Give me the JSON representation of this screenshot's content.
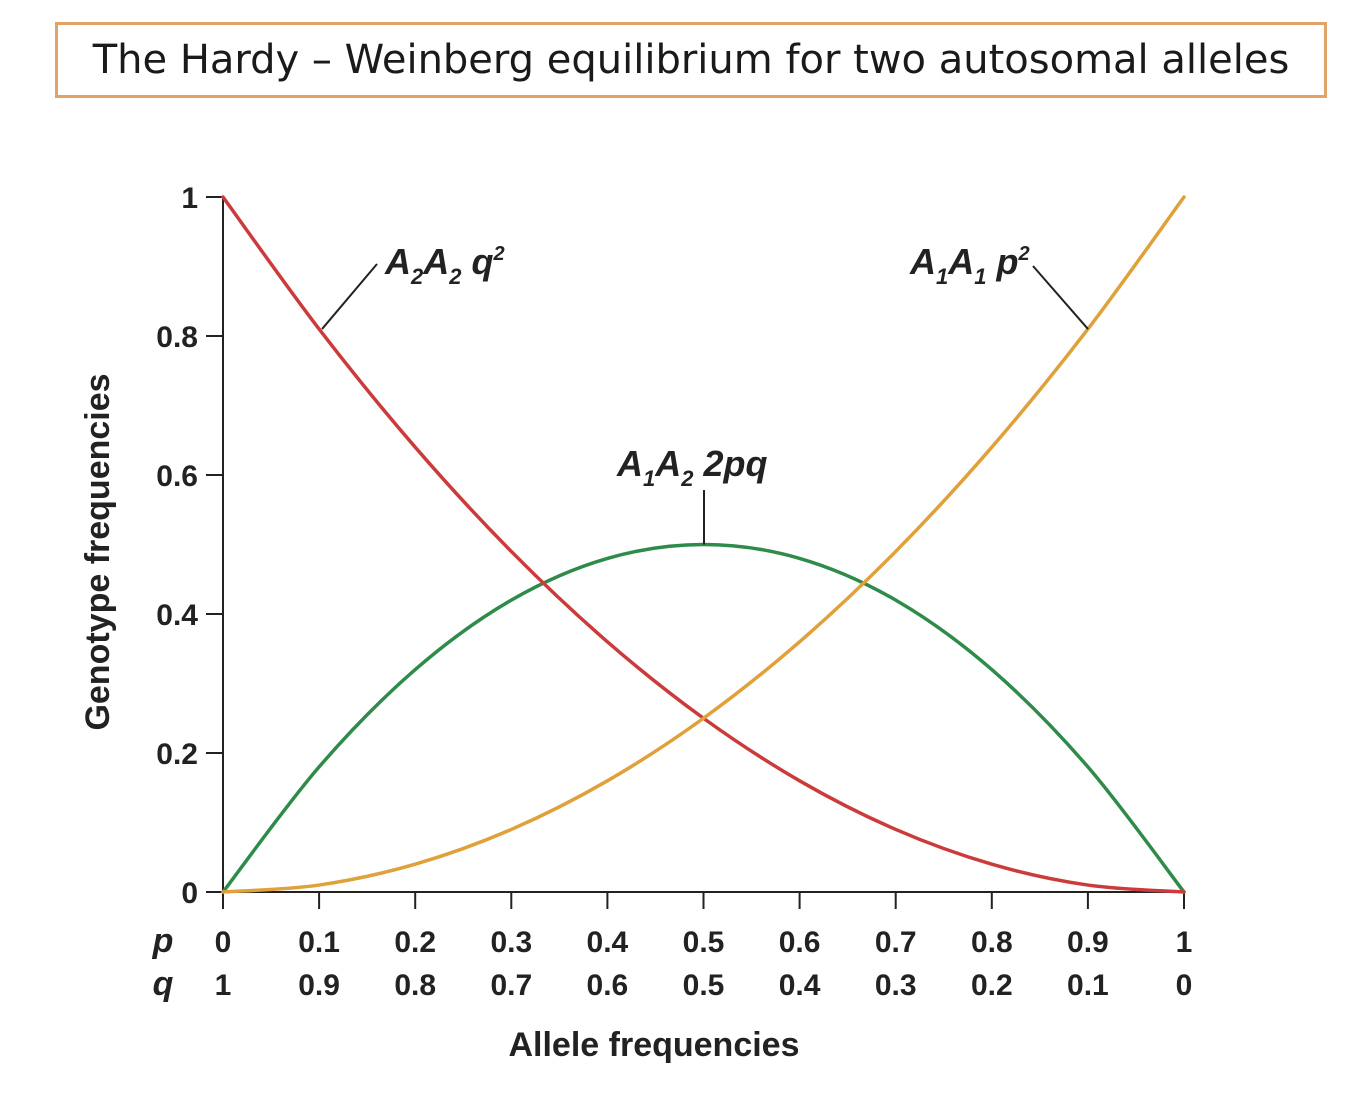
{
  "title": "The Hardy – Weinberg equilibrium for two autosomal alleles",
  "colors": {
    "title_border": "#e0a468",
    "A2A2": "#cc3b3b",
    "A1A2": "#2e8b4a",
    "A1A1": "#e0a03a",
    "axis": "#222222"
  },
  "chart_data": {
    "type": "line",
    "xlabel": "Allele frequencies",
    "ylabel": "Genotype frequencies",
    "ylim": [
      0,
      1
    ],
    "xlim": [
      0,
      1
    ],
    "y_ticks": [
      "0",
      "0.2",
      "0.4",
      "0.6",
      "0.8",
      "1"
    ],
    "x_rows": [
      {
        "label": "p",
        "ticks": [
          "0",
          "0.1",
          "0.2",
          "0.3",
          "0.4",
          "0.5",
          "0.6",
          "0.7",
          "0.8",
          "0.9",
          "1"
        ]
      },
      {
        "label": "q",
        "ticks": [
          "1",
          "0.9",
          "0.8",
          "0.7",
          "0.6",
          "0.5",
          "0.4",
          "0.3",
          "0.2",
          "0.1",
          "0"
        ]
      }
    ],
    "x": [
      0,
      0.1,
      0.2,
      0.3,
      0.4,
      0.5,
      0.6,
      0.7,
      0.8,
      0.9,
      1
    ],
    "series": [
      {
        "name": "A2A2 q2",
        "color": "#cc3b3b",
        "values": [
          1,
          0.81,
          0.64,
          0.49,
          0.36,
          0.25,
          0.16,
          0.09,
          0.04,
          0.01,
          0
        ]
      },
      {
        "name": "A1A2 2pq",
        "color": "#2e8b4a",
        "values": [
          0,
          0.18,
          0.32,
          0.42,
          0.48,
          0.5,
          0.48,
          0.42,
          0.32,
          0.18,
          0
        ]
      },
      {
        "name": "A1A1 p2",
        "color": "#e0a03a",
        "values": [
          0,
          0.01,
          0.04,
          0.09,
          0.16,
          0.25,
          0.36,
          0.49,
          0.64,
          0.81,
          1
        ]
      }
    ],
    "annotations": [
      {
        "main": "A",
        "sub1": "2",
        "main2": "A",
        "sub2": "2",
        "var": "q",
        "sup": "2"
      },
      {
        "main": "A",
        "sub1": "1",
        "main2": "A",
        "sub2": "2",
        "var": "2pq",
        "sup": ""
      },
      {
        "main": "A",
        "sub1": "1",
        "main2": "A",
        "sub2": "1",
        "var": "p",
        "sup": "2"
      }
    ]
  }
}
